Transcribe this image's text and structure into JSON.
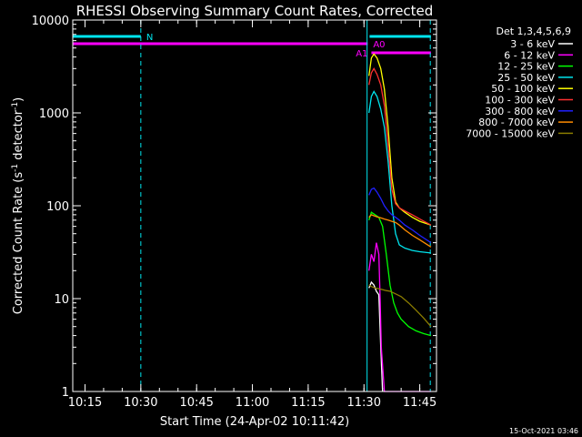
{
  "chart_data": {
    "type": "line",
    "title": "RHESSI Observing Summary Count Rates, Corrected",
    "xlabel": "Start Time (24-Apr-02 10:11:42)",
    "ylabel": "Corrected Count Rate (s",
    "ylabel_sup": "-1",
    "ylabel_tail": " detector",
    "ylabel_tail_sup": "-1",
    "ylabel_close": ")",
    "y_scale": "log",
    "ylim": [
      1,
      10000
    ],
    "xlim": [
      "10:11:42",
      "11:49:30"
    ],
    "x_ticks": [
      "10:15",
      "10:30",
      "10:45",
      "11:00",
      "11:15",
      "11:30",
      "11:45"
    ],
    "y_ticks": [
      "1",
      "10",
      "100",
      "1000",
      "10000"
    ],
    "legend_title": "Det 1,3,4,5,6,9",
    "legend_position": "top-right",
    "footer_date": "15-Oct-2021 03:46",
    "flag_bars": [
      {
        "label": "N",
        "color": "#00e5ee",
        "segments": [
          [
            "10:11:42",
            "10:30:00"
          ],
          [
            "11:31:30",
            "11:48:00"
          ]
        ]
      },
      {
        "label": "A0",
        "color": "#ff00ff",
        "segments": [
          [
            "10:11:42",
            "11:31:00"
          ]
        ]
      },
      {
        "label": "A1",
        "color": "#ff00ff",
        "segments": [
          [
            "11:32:00",
            "11:48:00"
          ]
        ]
      }
    ],
    "vertical_lines": [
      {
        "time": "10:11:42",
        "color": "#00e5ee",
        "style": "solid"
      },
      {
        "time": "10:30:00",
        "color": "#00e5ee",
        "style": "dashed"
      },
      {
        "time": "11:30:50",
        "color": "#00e5ee",
        "style": "solid"
      },
      {
        "time": "11:47:50",
        "color": "#00e5ee",
        "style": "dashed"
      }
    ],
    "series": [
      {
        "name": "3 - 6 keV",
        "color": "#ffffff",
        "times": [
          "11:31:20",
          "11:32:00",
          "11:32:40",
          "11:33:20",
          "11:34:00",
          "11:34:30",
          "11:35:00"
        ],
        "values": [
          13,
          15,
          14,
          12,
          11,
          3,
          1
        ]
      },
      {
        "name": "6 - 12 keV",
        "color": "#ff00ff",
        "times": [
          "11:31:20",
          "11:32:00",
          "11:32:40",
          "11:33:20",
          "11:34:00",
          "11:34:20",
          "11:34:40",
          "11:35:30",
          "11:48:00"
        ],
        "values": [
          20,
          30,
          25,
          40,
          30,
          10,
          3,
          1,
          1
        ]
      },
      {
        "name": "12 - 25 keV",
        "color": "#00ff00",
        "times": [
          "11:31:20",
          "11:32:00",
          "11:33:00",
          "11:34:00",
          "11:35:00",
          "11:36:00",
          "11:37:00",
          "11:38:00",
          "11:39:00",
          "11:40:00",
          "11:42:00",
          "11:44:00",
          "11:46:00",
          "11:48:00"
        ],
        "values": [
          70,
          85,
          80,
          75,
          60,
          30,
          14,
          9,
          7,
          6,
          5,
          4.5,
          4.2,
          4
        ]
      },
      {
        "name": "25 - 50 keV",
        "color": "#00e5ee",
        "times": [
          "11:31:20",
          "11:32:00",
          "11:32:40",
          "11:33:30",
          "11:34:30",
          "11:35:30",
          "11:36:30",
          "11:37:30",
          "11:38:30",
          "11:39:30",
          "11:41:00",
          "11:43:00",
          "11:45:00",
          "11:48:00"
        ],
        "values": [
          1000,
          1500,
          1700,
          1500,
          1100,
          700,
          300,
          100,
          50,
          38,
          35,
          33,
          32,
          31
        ]
      },
      {
        "name": "50 - 100 keV",
        "color": "#ffff00",
        "times": [
          "11:31:20",
          "11:32:00",
          "11:32:40",
          "11:33:30",
          "11:34:30",
          "11:35:30",
          "11:36:30",
          "11:37:30",
          "11:38:30",
          "11:39:30",
          "11:41:00",
          "11:43:00",
          "11:45:00",
          "11:48:00"
        ],
        "values": [
          2500,
          3900,
          4300,
          3900,
          3000,
          1800,
          700,
          200,
          110,
          95,
          85,
          75,
          68,
          62
        ]
      },
      {
        "name": "100 - 300 keV",
        "color": "#ff3030",
        "times": [
          "11:31:20",
          "11:32:00",
          "11:32:40",
          "11:33:30",
          "11:34:30",
          "11:35:30",
          "11:36:30",
          "11:37:30",
          "11:38:30",
          "11:39:30",
          "11:41:00",
          "11:43:00",
          "11:45:00",
          "11:48:00"
        ],
        "values": [
          2000,
          2700,
          3000,
          2600,
          2000,
          1200,
          450,
          150,
          105,
          95,
          88,
          80,
          72,
          62
        ]
      },
      {
        "name": "300 - 800 keV",
        "color": "#2020ff",
        "times": [
          "11:31:20",
          "11:32:00",
          "11:32:40",
          "11:33:30",
          "11:34:30",
          "11:35:30",
          "11:36:30",
          "11:37:30",
          "11:38:30",
          "11:39:30",
          "11:41:00",
          "11:43:00",
          "11:45:00",
          "11:48:00"
        ],
        "values": [
          130,
          150,
          155,
          140,
          120,
          100,
          88,
          80,
          75,
          70,
          62,
          55,
          48,
          40
        ]
      },
      {
        "name": "800 - 7000 keV",
        "color": "#ff8c00",
        "times": [
          "11:31:20",
          "11:32:00",
          "11:32:40",
          "11:33:30",
          "11:34:30",
          "11:35:30",
          "11:36:30",
          "11:37:30",
          "11:38:30",
          "11:39:30",
          "11:41:00",
          "11:43:00",
          "11:45:00",
          "11:48:00"
        ],
        "values": [
          75,
          80,
          78,
          76,
          74,
          72,
          70,
          68,
          66,
          62,
          55,
          48,
          43,
          36
        ]
      },
      {
        "name": "7000 - 15000 keV",
        "color": "#8b7d00",
        "times": [
          "11:31:20",
          "11:32:00",
          "11:33:00",
          "11:34:00",
          "11:35:00",
          "11:36:00",
          "11:37:00",
          "11:38:00",
          "11:39:00",
          "11:40:00",
          "11:42:00",
          "11:44:00",
          "11:46:00",
          "11:48:00"
        ],
        "values": [
          14,
          13.5,
          13,
          12.8,
          12.5,
          12.2,
          12,
          11.5,
          11,
          10.5,
          9,
          7.5,
          6.2,
          5
        ]
      }
    ]
  }
}
